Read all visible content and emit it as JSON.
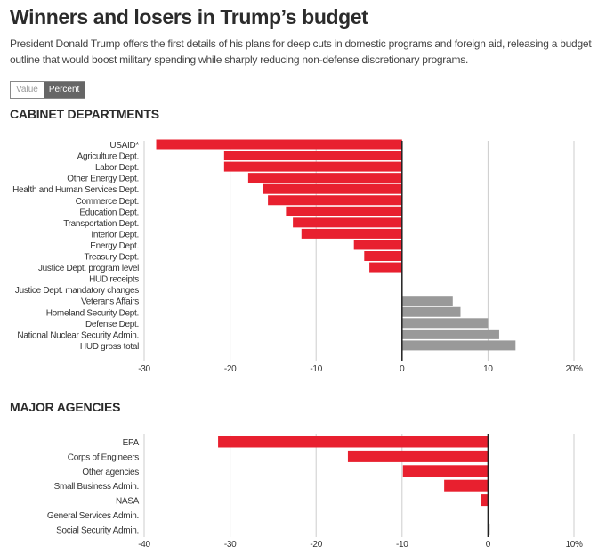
{
  "header": {
    "title": "Winners and losers in Trump’s budget",
    "subtitle": "President Donald Trump offers the first details of his plans for deep cuts in domestic programs and foreign aid, releasing a budget outline that would boost military spending while sharply reducing non-defense discretionary programs."
  },
  "toggle": {
    "options": [
      "Value",
      "Percent"
    ],
    "selected": "Percent"
  },
  "colors": {
    "negative": "#e8202f",
    "positive": "#999999",
    "grid": "#cccccc",
    "zero": "#222222"
  },
  "chart_data": [
    {
      "type": "bar",
      "orientation": "horizontal",
      "title": "CABINET DEPARTMENTS",
      "categories": [
        "USAID*",
        "Agriculture Dept.",
        "Labor Dept.",
        "Other Energy Dept.",
        "Health and Human Services Dept.",
        "Commerce Dept.",
        "Education Dept.",
        "Transportation Dept.",
        "Interior Dept.",
        "Energy Dept.",
        "Treasury Dept.",
        "Justice Dept. program level",
        "HUD receipts",
        "Justice Dept. mandatory changes",
        "Veterans Affairs",
        "Homeland Security Dept.",
        "Defense Dept.",
        "National Nuclear Security Admin.",
        "HUD gross total"
      ],
      "values": [
        -28.6,
        -20.7,
        -20.7,
        -17.9,
        -16.2,
        -15.6,
        -13.5,
        -12.7,
        -11.7,
        -5.6,
        -4.4,
        -3.8,
        0,
        0,
        5.9,
        6.8,
        10.0,
        11.3,
        13.2
      ],
      "xlim": [
        -30,
        20
      ],
      "ticks": [
        -30,
        -20,
        -10,
        0,
        10,
        20
      ],
      "tick_labels": [
        "-30",
        "-20",
        "-10",
        "0",
        "10",
        "20%"
      ],
      "grid": true
    },
    {
      "type": "bar",
      "orientation": "horizontal",
      "title": "MAJOR AGENCIES",
      "categories": [
        "EPA",
        "Corps of Engineers",
        "Other agencies",
        "Small Business Admin.",
        "NASA",
        "General Services Admin.",
        "Social Security Admin."
      ],
      "values": [
        -31.4,
        -16.3,
        -9.9,
        -5.1,
        -0.8,
        0,
        0.2
      ],
      "xlim": [
        -40,
        10
      ],
      "ticks": [
        -40,
        -30,
        -20,
        -10,
        0,
        10
      ],
      "tick_labels": [
        "-40",
        "-30",
        "-20",
        "-10",
        "0",
        "10%"
      ],
      "grid": true
    }
  ]
}
